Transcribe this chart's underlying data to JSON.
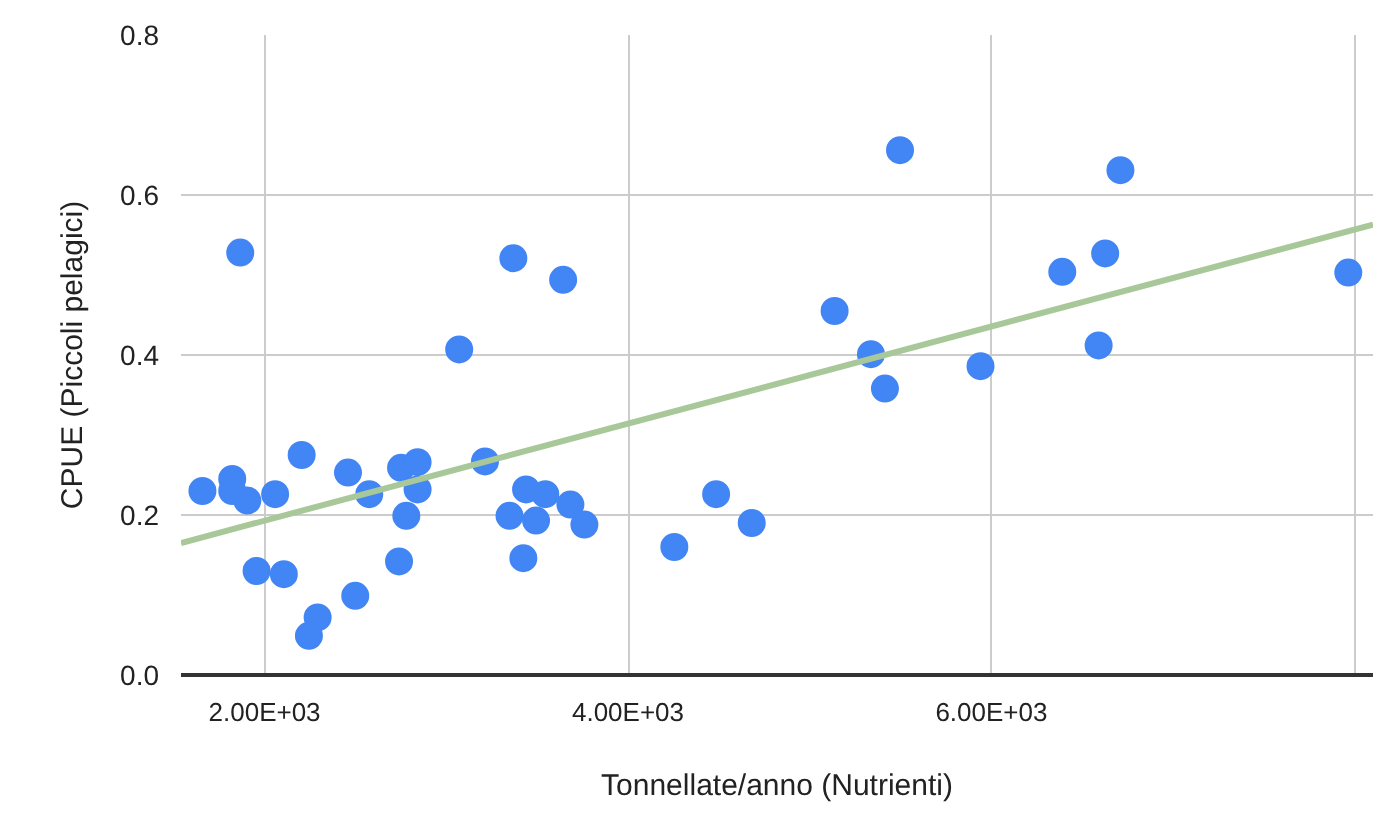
{
  "chart_data": {
    "type": "scatter",
    "xlabel": "Tonnellate/anno (Nutrienti)",
    "ylabel": "CPUE (Piccoli pelagici)",
    "xlim": [
      1540,
      8100
    ],
    "ylim": [
      0,
      0.8
    ],
    "xticks": [
      {
        "value": 2000,
        "label": "2.00E+03"
      },
      {
        "value": 4000,
        "label": "4.00E+03"
      },
      {
        "value": 6000,
        "label": "6.00E+03"
      },
      {
        "value": 8000,
        "label": null
      }
    ],
    "yticks": [
      {
        "value": 0,
        "label": "0.0"
      },
      {
        "value": 0.2,
        "label": "0.2"
      },
      {
        "value": 0.4,
        "label": "0.4"
      },
      {
        "value": 0.6,
        "label": "0.6"
      },
      {
        "value": 0.8,
        "label": "0.8"
      }
    ],
    "grid": true,
    "series": [
      {
        "marker": "circle",
        "color": "#4285f4",
        "x": [
          1658,
          1822,
          1822,
          1905,
          1866,
          2058,
          1956,
          2106,
          2204,
          2292,
          2244,
          2499,
          2459,
          2576,
          2740,
          2751,
          2842,
          2842,
          2780,
          3071,
          3213,
          3369,
          3643,
          3348,
          3439,
          3545,
          3424,
          3494,
          3683,
          3760,
          4255,
          4485,
          4681,
          5497,
          6710,
          5137,
          5337,
          5414,
          5940,
          6390,
          6626,
          6590,
          7964
        ],
        "values": [
          0.23,
          0.245,
          0.23,
          0.218,
          0.528,
          0.226,
          0.13,
          0.126,
          0.275,
          0.072,
          0.049,
          0.099,
          0.253,
          0.226,
          0.142,
          0.259,
          0.266,
          0.232,
          0.199,
          0.407,
          0.267,
          0.521,
          0.494,
          0.199,
          0.232,
          0.226,
          0.146,
          0.193,
          0.213,
          0.188,
          0.16,
          0.226,
          0.19,
          0.656,
          0.631,
          0.455,
          0.401,
          0.358,
          0.386,
          0.504,
          0.527,
          0.412,
          0.503
        ]
      },
      {
        "type": "line",
        "color": "#a8c899",
        "x": [
          1540,
          8100
        ],
        "values": [
          0.165,
          0.563
        ]
      }
    ]
  }
}
